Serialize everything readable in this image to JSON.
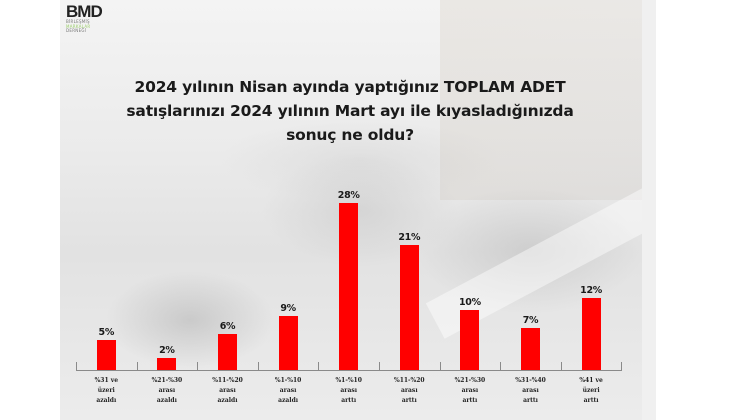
{
  "logo": {
    "main": "BMD",
    "sub_lines": [
      "BİRLEŞMİŞ",
      "MARKALAR",
      "DERNEĞİ"
    ]
  },
  "title_lines": [
    "2024 yılının Nisan ayında yaptığınız TOPLAM ADET",
    "satışlarınızı 2024 yılının Mart ayı ile kıyasladığınızda",
    "sonuç ne oldu?"
  ],
  "colors": {
    "bar": "#ff0000",
    "axis": "#8a8a8a",
    "text": "#1a1a1a"
  },
  "chart_data": {
    "type": "bar",
    "title": "2024 yılının Nisan ayında yaptığınız TOPLAM ADET satışlarınızı 2024 yılının Mart ayı ile kıyasladığınızda sonuç ne oldu?",
    "categories": [
      "%31 ve üzeri azaldı",
      "%21-%30 arası azaldı",
      "%11-%20 arası azaldı",
      "%1-%10 arası azaldı",
      "%1-%10 arası arttı",
      "%11-%20 arası arttı",
      "%21-%30 arası arttı",
      "%31-%40 arası arttı",
      "%41 ve üzeri arttı"
    ],
    "category_lines": [
      [
        "%31 ve",
        "üzeri",
        "azaldı"
      ],
      [
        "%21-%30",
        "arası",
        "azaldı"
      ],
      [
        "%11-%20",
        "arası",
        "azaldı"
      ],
      [
        "%1-%10",
        "arası",
        "azaldı"
      ],
      [
        "%1-%10",
        "arası",
        "arttı"
      ],
      [
        "%11-%20",
        "arası",
        "arttı"
      ],
      [
        "%21-%30",
        "arası",
        "arttı"
      ],
      [
        "%31-%40",
        "arası",
        "arttı"
      ],
      [
        "%41 ve",
        "üzeri",
        "arttı"
      ]
    ],
    "values": [
      5,
      2,
      6,
      9,
      28,
      21,
      10,
      7,
      12
    ],
    "value_labels": [
      "5%",
      "2%",
      "6%",
      "9%",
      "28%",
      "21%",
      "10%",
      "7%",
      "12%"
    ],
    "xlabel": "",
    "ylabel": "",
    "ylim": [
      0,
      30
    ],
    "grid": false,
    "legend": "none",
    "data_labels": true
  }
}
